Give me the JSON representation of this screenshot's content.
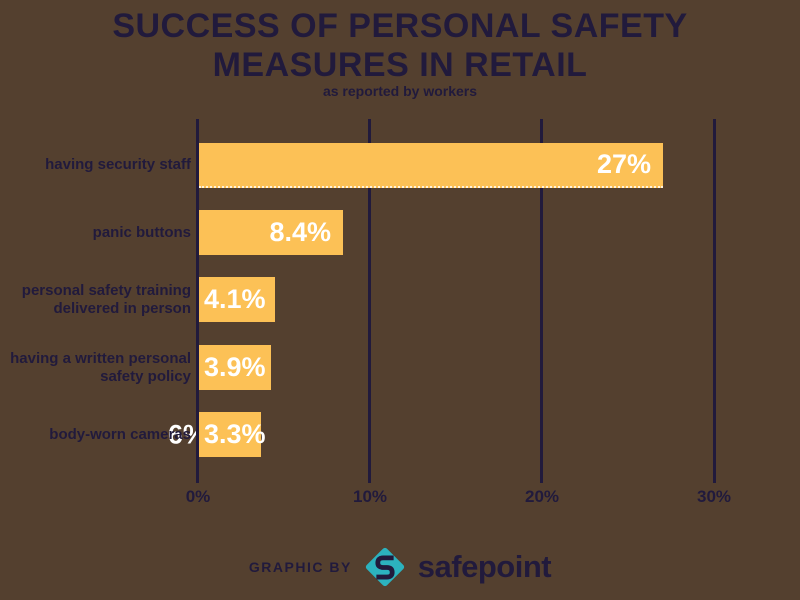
{
  "title": {
    "line1": "SUCCESS OF PERSONAL SAFETY",
    "line2": "MEASURES IN RETAIL",
    "subtitle": "as reported by workers"
  },
  "colors": {
    "background": "#54402F",
    "ink": "#211A3C",
    "bar": "#FCC156",
    "value_text": "#FFFFFF",
    "logo_teal": "#2CB2BE"
  },
  "chart_data": {
    "type": "bar",
    "orientation": "horizontal",
    "title": "SUCCESS OF PERSONAL SAFETY MEASURES IN RETAIL",
    "subtitle": "as reported by workers",
    "xlim": [
      0,
      30
    ],
    "x_ticks": [
      "0%",
      "10%",
      "20%",
      "30%"
    ],
    "grid": "vertical gridlines at each tick",
    "legend": "none",
    "categories": [
      "having security staff",
      "panic buttons",
      "personal safety training delivered in person",
      "having a written personal safety policy",
      "body-worn cameras"
    ],
    "values": [
      27,
      8.4,
      4.1,
      3.9,
      3.3
    ],
    "rows": [
      {
        "label_line1": "having security staff",
        "value": 27,
        "value_label": "27%"
      },
      {
        "label_line1": "panic buttons",
        "value": 8.4,
        "value_label": "8.4%"
      },
      {
        "label_line1": "personal safety training",
        "label_line2": "delivered in person",
        "value": 4.1,
        "value_label": "4.1%"
      },
      {
        "label_line1": "having a written personal",
        "label_line2": "safety policy",
        "value": 3.9,
        "value_label": "3.9%"
      },
      {
        "label_line1": "body-worn cameras",
        "value": 3.3,
        "value_label": "3.3%"
      }
    ],
    "stray_overlap_label": "6%"
  },
  "footer": {
    "credit": "GRAPHIC BY",
    "brand": "safepoint",
    "logo": "safepoint-diamond-s-logo"
  }
}
